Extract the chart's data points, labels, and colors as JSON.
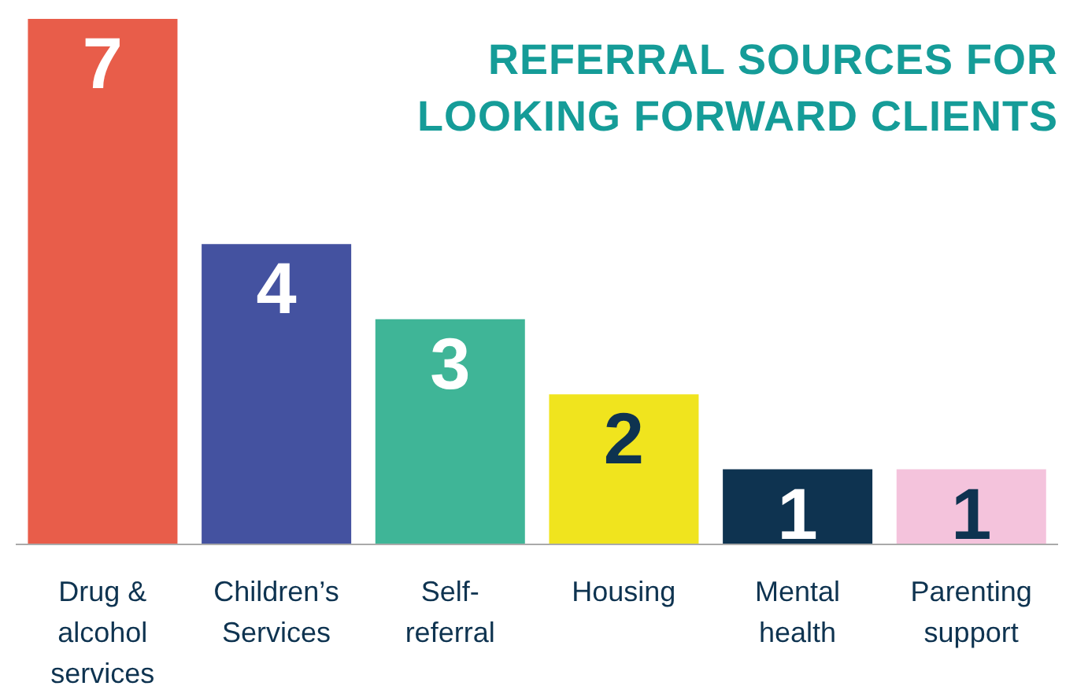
{
  "chart_data": {
    "type": "bar",
    "title": "REFERRAL SOURCES FOR LOOKING FORWARD CLIENTS",
    "categories": [
      "Drug & alcohol services",
      "Children’s Services",
      "Self-referral",
      "Housing",
      "Mental health",
      "Parenting support"
    ],
    "values": [
      7,
      4,
      3,
      2,
      1,
      1
    ],
    "colors": [
      "#e85d4a",
      "#4452a0",
      "#3fb597",
      "#f0e41e",
      "#0e3350",
      "#f4c3dc"
    ],
    "data_labels": true
  }
}
